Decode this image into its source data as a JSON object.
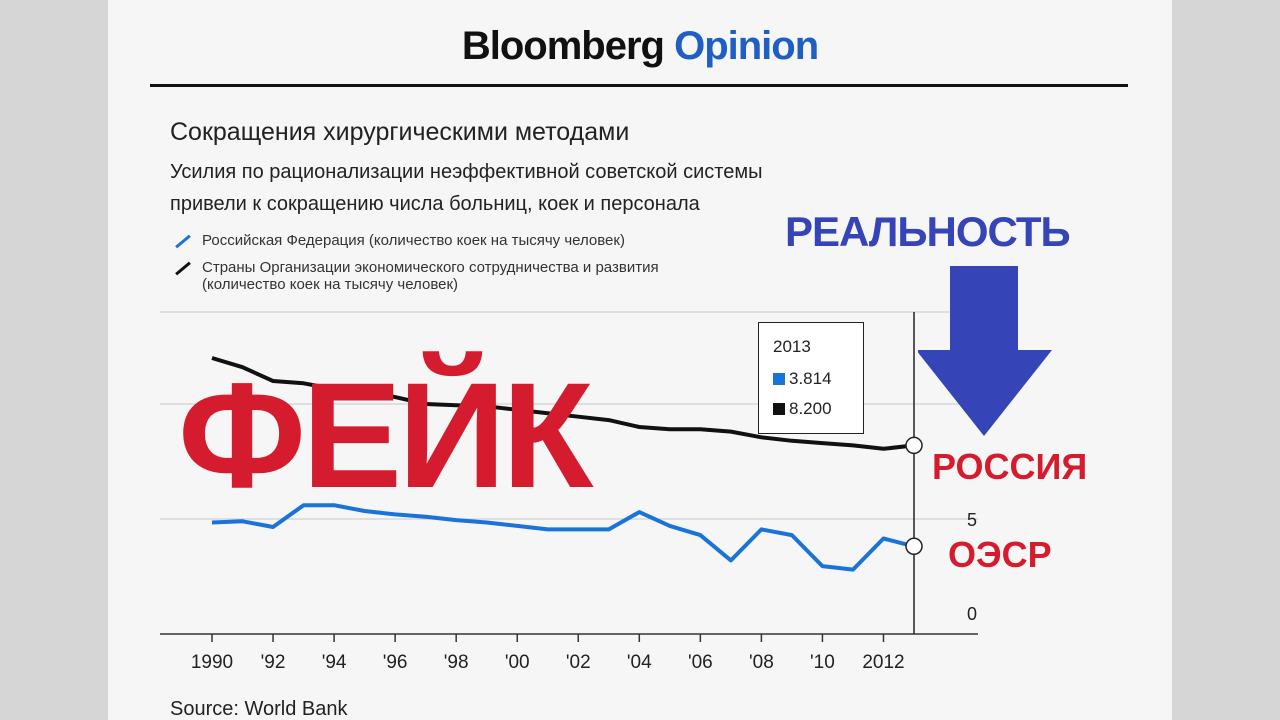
{
  "brand": {
    "name": "Bloomberg",
    "section": "Opinion"
  },
  "chart_data": {
    "type": "line",
    "title": "Сокращения хирургическими методами",
    "subtitle_lines": [
      "Усилия по рационализации неэффективной советской системы",
      "привели к сокращению числа больниц, коек и персонала"
    ],
    "legend": [
      {
        "name": "Российская Федерация (количество коек на тысячу человек)",
        "color": "#1a73d9"
      },
      {
        "name": "Страны Организации экономического сотрудничества и развития",
        "name_line2": "(количество коек на тысячу человек)",
        "color": "#111111"
      }
    ],
    "x_ticks": [
      "1990",
      "'92",
      "'94",
      "'96",
      "'98",
      "'00",
      "'02",
      "'04",
      "'06",
      "'08",
      "'10",
      "2012"
    ],
    "y_ticks": [
      "0",
      "5"
    ],
    "ylim": [
      0,
      14
    ],
    "xlim": [
      1989,
      2014
    ],
    "grid": true,
    "series": [
      {
        "name": "Российская Федерация (количество коек на тысячу человек)",
        "color": "#1a73d9",
        "x": [
          1990,
          1991,
          1992,
          1993,
          1994,
          1995,
          1996,
          1997,
          1998,
          1999,
          2000,
          2001,
          2002,
          2003,
          2004,
          2005,
          2006,
          2007,
          2008,
          2009,
          2010,
          2011,
          2012,
          2013
        ],
        "values": [
          4.85,
          4.9,
          4.65,
          5.6,
          5.6,
          5.35,
          5.2,
          5.1,
          4.95,
          4.85,
          4.7,
          4.55,
          4.55,
          4.55,
          5.3,
          4.7,
          4.3,
          3.2,
          4.55,
          4.3,
          2.95,
          2.8,
          4.15,
          3.814
        ]
      },
      {
        "name": "Страны Организации экономического сотрудничества и развития (количество коек на тысячу человек)",
        "color": "#111111",
        "x": [
          1990,
          1991,
          1992,
          1993,
          1994,
          1995,
          1996,
          1997,
          1998,
          1999,
          2000,
          2001,
          2002,
          2003,
          2004,
          2005,
          2006,
          2007,
          2008,
          2009,
          2010,
          2011,
          2012,
          2013
        ],
        "values": [
          12.0,
          11.6,
          11.0,
          10.9,
          10.65,
          10.6,
          10.3,
          10.0,
          9.95,
          9.9,
          9.75,
          9.6,
          9.45,
          9.3,
          9.0,
          8.9,
          8.9,
          8.8,
          8.55,
          8.4,
          8.3,
          8.2,
          8.05,
          8.2
        ]
      }
    ],
    "tooltip": {
      "year": "2013",
      "values": [
        "3.814",
        "8.200"
      ]
    },
    "source": "Source: World Bank"
  },
  "overlay": {
    "stamp": "ФЕЙК",
    "reality": "РЕАЛЬНОСТЬ",
    "label_russia": "РОССИЯ",
    "label_oecd": "ОЭСР",
    "arrow_color": "#3545b8",
    "stamp_color": "#d41c2e"
  }
}
